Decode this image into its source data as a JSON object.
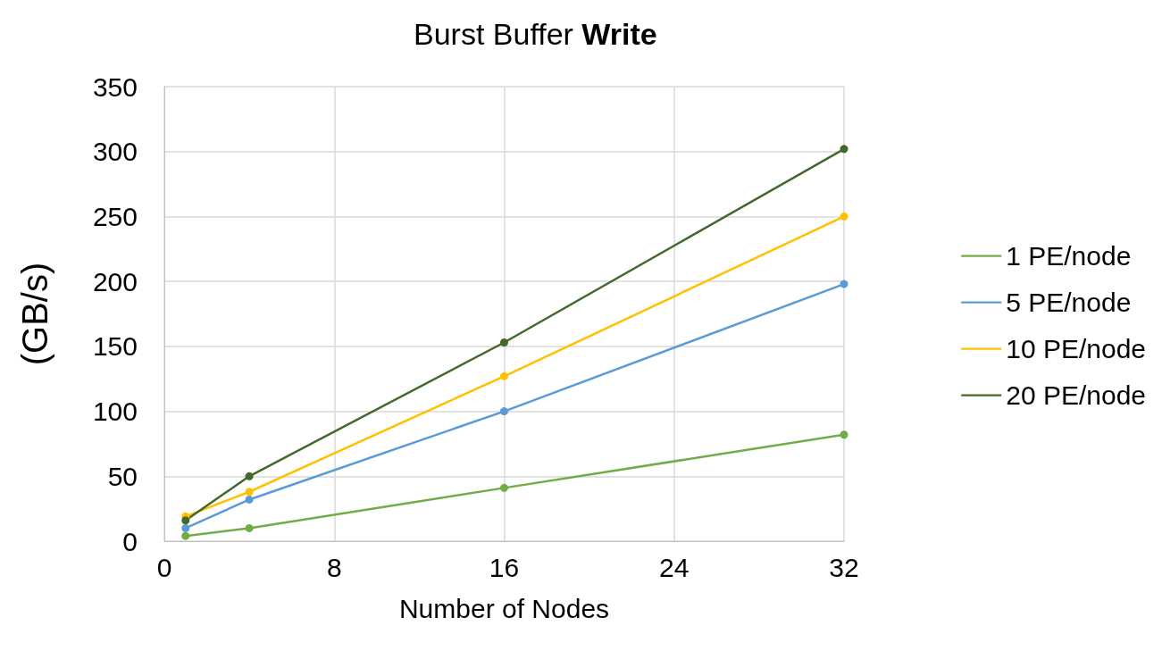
{
  "chart_data": {
    "type": "line",
    "title": "Burst Buffer Write",
    "xlabel": "Number of Nodes",
    "ylabel": "(GB/s)",
    "x": [
      1,
      4,
      16,
      32
    ],
    "series": [
      {
        "name": "1 PE/node",
        "color": "#70ad47",
        "values": [
          4,
          10,
          41,
          82
        ]
      },
      {
        "name": "5 PE/node",
        "color": "#5b9bd5",
        "values": [
          10,
          32,
          100,
          198
        ]
      },
      {
        "name": "10 PE/node",
        "color": "#ffc000",
        "values": [
          19,
          38,
          127,
          250
        ]
      },
      {
        "name": "20 PE/node",
        "color": "#43682b",
        "values": [
          16,
          50,
          153,
          302
        ]
      }
    ],
    "xlim": [
      0,
      32
    ],
    "xticks": [
      0,
      8,
      16,
      24,
      32
    ],
    "ylim": [
      0,
      350
    ],
    "yticks": [
      0,
      50,
      100,
      150,
      200,
      250,
      300,
      350
    ],
    "grid": true,
    "legend": "right",
    "marker": "circle",
    "line_style": "solid"
  }
}
